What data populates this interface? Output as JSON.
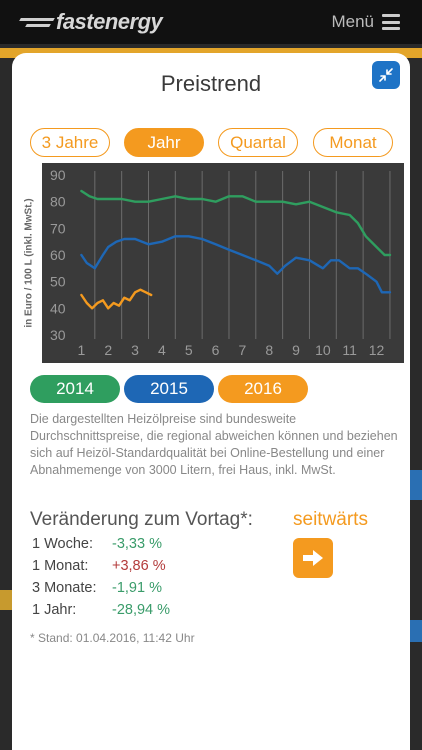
{
  "header": {
    "logo_fast": "fast",
    "logo_energy": "energy",
    "menu_label": "Menü"
  },
  "modal": {
    "title": "Preistrend",
    "range_tabs": [
      {
        "label": "3 Jahre",
        "active": false
      },
      {
        "label": "Jahr",
        "active": true
      },
      {
        "label": "Quartal",
        "active": false
      },
      {
        "label": "Monat",
        "active": false
      }
    ],
    "years": [
      {
        "label": "2014",
        "color": "#2f9e5f"
      },
      {
        "label": "2015",
        "color": "#1e67b5"
      },
      {
        "label": "2016",
        "color": "#f49a1f"
      }
    ],
    "disclaimer": "Die dargestellten Heizölpreise sind bundesweite Durchschnittspreise, die regional abweichen können und beziehen sich auf Heizöl-Standardqualität bei Online-Bestellung und einer Abnahmemenge von 3000 Litern, frei Haus, inkl. MwSt.",
    "change_title": "Veränderung zum Vortag*:",
    "trend_label": "seitwärts",
    "changes": [
      {
        "label": "1 Woche:",
        "value": "-3,33 %",
        "direction": "neg"
      },
      {
        "label": "1 Monat:",
        "value": "+3,86 %",
        "direction": "pos"
      },
      {
        "label": "3 Monate:",
        "value": "-1,91 %",
        "direction": "neg"
      },
      {
        "label": "1 Jahr:",
        "value": "-28,94 %",
        "direction": "neg"
      }
    ],
    "stand": "* Stand: 01.04.2016, 11:42 Uhr"
  },
  "chart_data": {
    "type": "line",
    "ylabel": "in Euro / 100 L (inkl. MwSt.)",
    "ylim": [
      30,
      90
    ],
    "yticks": [
      "90",
      "80",
      "70",
      "60",
      "50",
      "40",
      "30"
    ],
    "xlim": [
      0.5,
      12.8
    ],
    "xticks": [
      "1",
      "2",
      "3",
      "4",
      "5",
      "6",
      "7",
      "8",
      "9",
      "10",
      "11",
      "12"
    ],
    "grid": "vertical",
    "background": "#3a3a3a",
    "series": [
      {
        "name": "2014",
        "color": "#2f9e5f",
        "x": [
          1.0,
          1.3,
          1.6,
          2.0,
          2.5,
          3.0,
          3.5,
          4.0,
          4.5,
          5.0,
          5.5,
          6.0,
          6.5,
          7.0,
          7.5,
          8.0,
          8.5,
          9.0,
          9.5,
          10.0,
          10.5,
          11.0,
          11.3,
          11.6,
          12.0,
          12.3,
          12.5
        ],
        "y": [
          84,
          82,
          81,
          81,
          81,
          80,
          80,
          81,
          82,
          81,
          81,
          80,
          82,
          82,
          80,
          80,
          80,
          79,
          80,
          78,
          76,
          75,
          72,
          67,
          63,
          60,
          60
        ]
      },
      {
        "name": "2015",
        "color": "#1e67b5",
        "x": [
          1.0,
          1.2,
          1.5,
          1.8,
          2.0,
          2.3,
          2.6,
          3.0,
          3.5,
          4.0,
          4.5,
          5.0,
          5.5,
          6.0,
          6.5,
          7.0,
          7.5,
          8.0,
          8.3,
          8.6,
          9.0,
          9.5,
          10.0,
          10.3,
          10.6,
          11.0,
          11.3,
          11.6,
          12.0,
          12.2,
          12.5
        ],
        "y": [
          60,
          57,
          55,
          60,
          63,
          65,
          66,
          66,
          64,
          65,
          67,
          67,
          66,
          64,
          62,
          60,
          58,
          56,
          53,
          56,
          59,
          58,
          55,
          58,
          58,
          55,
          55,
          53,
          50,
          46,
          46
        ]
      },
      {
        "name": "2016",
        "color": "#f49a1f",
        "x": [
          1.0,
          1.2,
          1.4,
          1.6,
          1.8,
          2.0,
          2.2,
          2.4,
          2.6,
          2.8,
          3.0,
          3.2,
          3.4,
          3.6
        ],
        "y": [
          45,
          42,
          40,
          42,
          43,
          40,
          42,
          41,
          44,
          43,
          46,
          47,
          46,
          45
        ]
      }
    ]
  }
}
